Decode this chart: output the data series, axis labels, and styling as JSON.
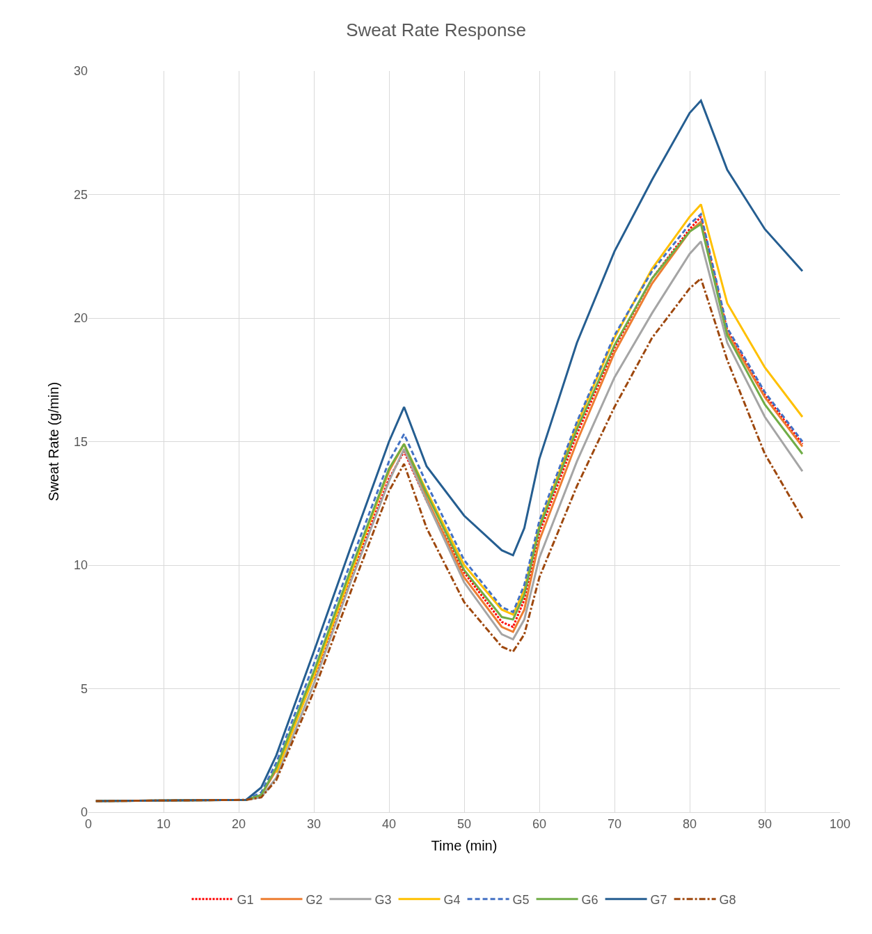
{
  "chart_data": {
    "type": "line",
    "title": "Sweat Rate Response",
    "xlabel": "Time (min)",
    "ylabel": "Sweat Rate (g/min)",
    "x": [
      1,
      21,
      23,
      25,
      30,
      35,
      40,
      42,
      45,
      50,
      55,
      56.5,
      58,
      60,
      65,
      70,
      75,
      80,
      81.5,
      85,
      90,
      95
    ],
    "xlim": [
      0,
      100
    ],
    "xticks": [
      0,
      10,
      20,
      30,
      40,
      50,
      60,
      70,
      80,
      90,
      100
    ],
    "ylim": [
      0,
      30
    ],
    "yticks": [
      0,
      5,
      10,
      15,
      20,
      25,
      30
    ],
    "grid": true,
    "legend": "bottom",
    "marker": "none",
    "series": [
      {
        "name": "G1",
        "color": "#ff0000",
        "line_style": "dotted",
        "values": [
          null,
          null,
          null,
          null,
          5.4,
          9.6,
          13.5,
          14.6,
          12.6,
          9.7,
          7.7,
          7.5,
          8.6,
          11.3,
          15.3,
          18.8,
          21.6,
          23.6,
          24.1,
          19.5,
          16.9,
          14.9
        ]
      },
      {
        "name": "G2",
        "color": "#ed7d31",
        "line_style": "solid",
        "values": [
          0.45,
          0.5,
          0.7,
          1.7,
          5.5,
          9.8,
          13.8,
          14.9,
          12.7,
          9.5,
          7.5,
          7.3,
          8.2,
          11.0,
          15.0,
          18.6,
          21.4,
          23.5,
          23.9,
          19.4,
          16.8,
          14.8
        ]
      },
      {
        "name": "G3",
        "color": "#a5a5a5",
        "line_style": "solid",
        "values": [
          0.45,
          0.5,
          0.6,
          1.4,
          5.2,
          9.4,
          13.4,
          14.7,
          12.6,
          9.3,
          7.2,
          7.0,
          7.8,
          10.3,
          14.2,
          17.6,
          20.2,
          22.6,
          23.1,
          19.0,
          16.0,
          13.8
        ]
      },
      {
        "name": "G4",
        "color": "#ffc000",
        "line_style": "solid",
        "values": [
          null,
          null,
          null,
          1.6,
          5.5,
          9.7,
          13.9,
          14.9,
          13.0,
          10.0,
          8.2,
          8.0,
          9.0,
          11.6,
          15.7,
          19.2,
          22.0,
          24.1,
          24.6,
          20.6,
          18.0,
          16.0
        ]
      },
      {
        "name": "G5",
        "color": "#4472c4",
        "line_style": "dashed",
        "values": [
          null,
          0.5,
          0.8,
          2.0,
          6.0,
          10.2,
          14.2,
          15.3,
          13.3,
          10.2,
          8.3,
          8.1,
          9.2,
          11.8,
          15.8,
          19.3,
          21.9,
          23.8,
          24.2,
          19.6,
          17.0,
          15.0
        ]
      },
      {
        "name": "G6",
        "color": "#70ad47",
        "line_style": "solid",
        "values": [
          0.45,
          0.5,
          0.7,
          1.8,
          5.7,
          9.9,
          13.9,
          14.9,
          12.9,
          9.8,
          7.9,
          7.8,
          8.8,
          11.5,
          15.5,
          18.9,
          21.6,
          23.5,
          23.8,
          19.3,
          16.5,
          14.5
        ]
      },
      {
        "name": "G7",
        "color": "#255e91",
        "line_style": "solid",
        "values": [
          0.45,
          0.5,
          1.0,
          2.3,
          6.5,
          10.8,
          15.0,
          16.4,
          14.0,
          12.0,
          10.6,
          10.4,
          11.5,
          14.3,
          19.0,
          22.7,
          25.6,
          28.3,
          28.8,
          26.0,
          23.6,
          21.9
        ]
      },
      {
        "name": "G8",
        "color": "#9e480e",
        "line_style": "dashdot",
        "values": [
          0.45,
          0.5,
          0.6,
          1.3,
          4.9,
          9.0,
          13.0,
          14.1,
          11.5,
          8.5,
          6.7,
          6.5,
          7.2,
          9.5,
          13.2,
          16.4,
          19.2,
          21.2,
          21.6,
          18.3,
          14.5,
          11.9
        ]
      }
    ]
  }
}
